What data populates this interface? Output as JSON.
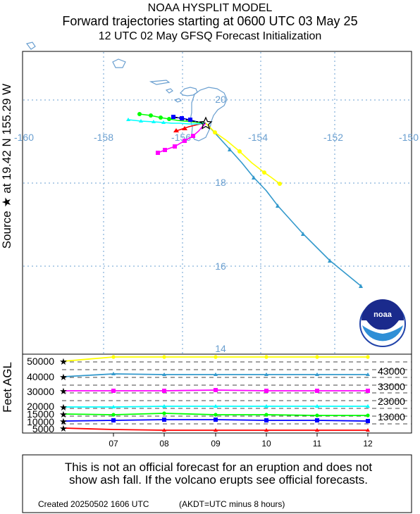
{
  "header": {
    "line1": "NOAA HYSPLIT MODEL",
    "line2": "Forward trajectories starting at 0600 UTC 03 May 25",
    "line3": "12 UTC 02 May    GFSQ  Forecast Initialization"
  },
  "side_label": "Source ★ at   19.42 N  155.29 W",
  "map": {
    "lon_labels": [
      "-160",
      "-158",
      "-156",
      "-154",
      "-152",
      "-150"
    ],
    "lat_labels": [
      "20",
      "18",
      "16",
      "14"
    ],
    "grid_color": "#6a9fd0",
    "coast_color": "#6a9fd0"
  },
  "trajectories": [
    {
      "color": "#ff0000",
      "marker": "triangle"
    },
    {
      "color": "#0000ff",
      "marker": "square"
    },
    {
      "color": "#00ff00",
      "marker": "circle"
    },
    {
      "color": "#00ffff",
      "marker": "triangle"
    },
    {
      "color": "#ff00ff",
      "marker": "square"
    },
    {
      "color": "#3399cc",
      "marker": "triangle"
    },
    {
      "color": "#ffff00",
      "marker": "circle"
    }
  ],
  "height_panel": {
    "ylabel": "Feet AGL",
    "left_labels": [
      "50000",
      "40000",
      "30000",
      "20000",
      "15000",
      "10000",
      "5000"
    ],
    "right_labels": [
      "43000",
      "33000",
      "23000",
      "13000"
    ],
    "time_labels": [
      "07",
      "08",
      "09",
      "10",
      "11",
      "12"
    ]
  },
  "logo": {
    "text": "noaa"
  },
  "footer": {
    "disclaimer_line1": "This is not an official forecast for an eruption and does not",
    "disclaimer_line2": "show ash fall. If the volcano erupts see official forecasts.",
    "created": "Created 20250502 1606 UTC",
    "timezone_note": "(AKDT=UTC minus 8 hours)"
  }
}
